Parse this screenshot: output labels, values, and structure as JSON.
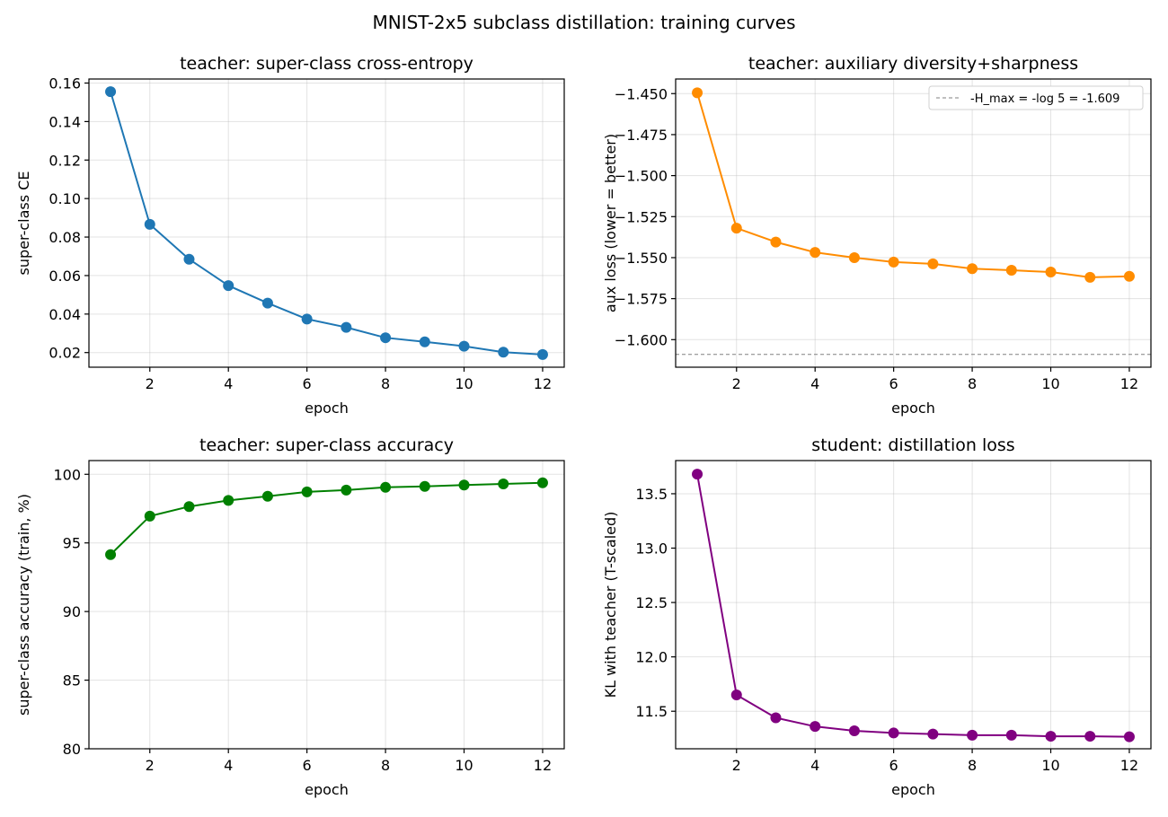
{
  "suptitle": "MNIST-2x5 subclass distillation: training curves",
  "chart_data": [
    {
      "type": "line",
      "title": "teacher: super-class cross-entropy",
      "xlabel": "epoch",
      "ylabel": "super-class CE",
      "color": "#1f77b4",
      "x": [
        1,
        2,
        3,
        4,
        5,
        6,
        7,
        8,
        9,
        10,
        11,
        12
      ],
      "values": [
        0.1555,
        0.0866,
        0.0685,
        0.0548,
        0.0457,
        0.0374,
        0.0331,
        0.0277,
        0.0256,
        0.0233,
        0.0202,
        0.019
      ],
      "xlim": [
        0.45,
        12.55
      ],
      "ylim": [
        0.0124,
        0.1621
      ],
      "xticks": [
        2,
        4,
        6,
        8,
        10,
        12
      ],
      "xtick_labels": [
        "2",
        "4",
        "6",
        "8",
        "10",
        "12"
      ],
      "yticks": [
        0.02,
        0.04,
        0.06,
        0.08,
        0.1,
        0.12,
        0.14,
        0.16
      ],
      "ytick_labels": [
        "0.02",
        "0.04",
        "0.06",
        "0.08",
        "0.10",
        "0.12",
        "0.14",
        "0.16"
      ],
      "grid": true
    },
    {
      "type": "line",
      "title": "teacher: auxiliary diversity+sharpness",
      "xlabel": "epoch",
      "ylabel": "aux loss (lower = better)",
      "color": "#ff8c00",
      "x": [
        1,
        2,
        3,
        4,
        5,
        6,
        7,
        8,
        9,
        10,
        11,
        12
      ],
      "values": [
        -1.4495,
        -1.532,
        -1.5405,
        -1.5468,
        -1.55,
        -1.5527,
        -1.5538,
        -1.5567,
        -1.5577,
        -1.5588,
        -1.562,
        -1.5614
      ],
      "xlim": [
        0.45,
        12.55
      ],
      "ylim": [
        -1.6168,
        -1.4411
      ],
      "xticks": [
        2,
        4,
        6,
        8,
        10,
        12
      ],
      "xtick_labels": [
        "2",
        "4",
        "6",
        "8",
        "10",
        "12"
      ],
      "yticks": [
        -1.6,
        -1.575,
        -1.55,
        -1.525,
        -1.5,
        -1.475,
        -1.45
      ],
      "ytick_labels": [
        "−1.600",
        "−1.575",
        "−1.550",
        "−1.525",
        "−1.500",
        "−1.475",
        "−1.450"
      ],
      "grid": true,
      "hline": {
        "y": -1.609,
        "color": "#808080",
        "label": "-H_max = -log 5 = -1.609"
      },
      "legend": "top-right"
    },
    {
      "type": "line",
      "title": "teacher: super-class accuracy",
      "xlabel": "epoch",
      "ylabel": "super-class accuracy (train, %)",
      "color": "#008000",
      "x": [
        1,
        2,
        3,
        4,
        5,
        6,
        7,
        8,
        9,
        10,
        11,
        12
      ],
      "values": [
        94.15,
        96.95,
        97.65,
        98.1,
        98.4,
        98.72,
        98.85,
        99.05,
        99.12,
        99.22,
        99.3,
        99.38
      ],
      "xlim": [
        0.45,
        12.55
      ],
      "ylim": [
        80,
        101
      ],
      "xticks": [
        2,
        4,
        6,
        8,
        10,
        12
      ],
      "xtick_labels": [
        "2",
        "4",
        "6",
        "8",
        "10",
        "12"
      ],
      "yticks": [
        80,
        85,
        90,
        95,
        100
      ],
      "ytick_labels": [
        "80",
        "85",
        "90",
        "95",
        "100"
      ],
      "grid": true
    },
    {
      "type": "line",
      "title": "student: distillation loss",
      "xlabel": "epoch",
      "ylabel": "KL with teacher (T-scaled)",
      "color": "#800080",
      "x": [
        1,
        2,
        3,
        4,
        5,
        6,
        7,
        8,
        9,
        10,
        11,
        12
      ],
      "values": [
        13.68,
        11.65,
        11.44,
        11.36,
        11.32,
        11.3,
        11.29,
        11.28,
        11.28,
        11.27,
        11.27,
        11.265
      ],
      "xlim": [
        0.45,
        12.55
      ],
      "ylim": [
        11.155,
        13.805
      ],
      "xticks": [
        2,
        4,
        6,
        8,
        10,
        12
      ],
      "xtick_labels": [
        "2",
        "4",
        "6",
        "8",
        "10",
        "12"
      ],
      "yticks": [
        11.5,
        12.0,
        12.5,
        13.0,
        13.5
      ],
      "ytick_labels": [
        "11.5",
        "12.0",
        "12.5",
        "13.0",
        "13.5"
      ],
      "grid": true
    }
  ]
}
